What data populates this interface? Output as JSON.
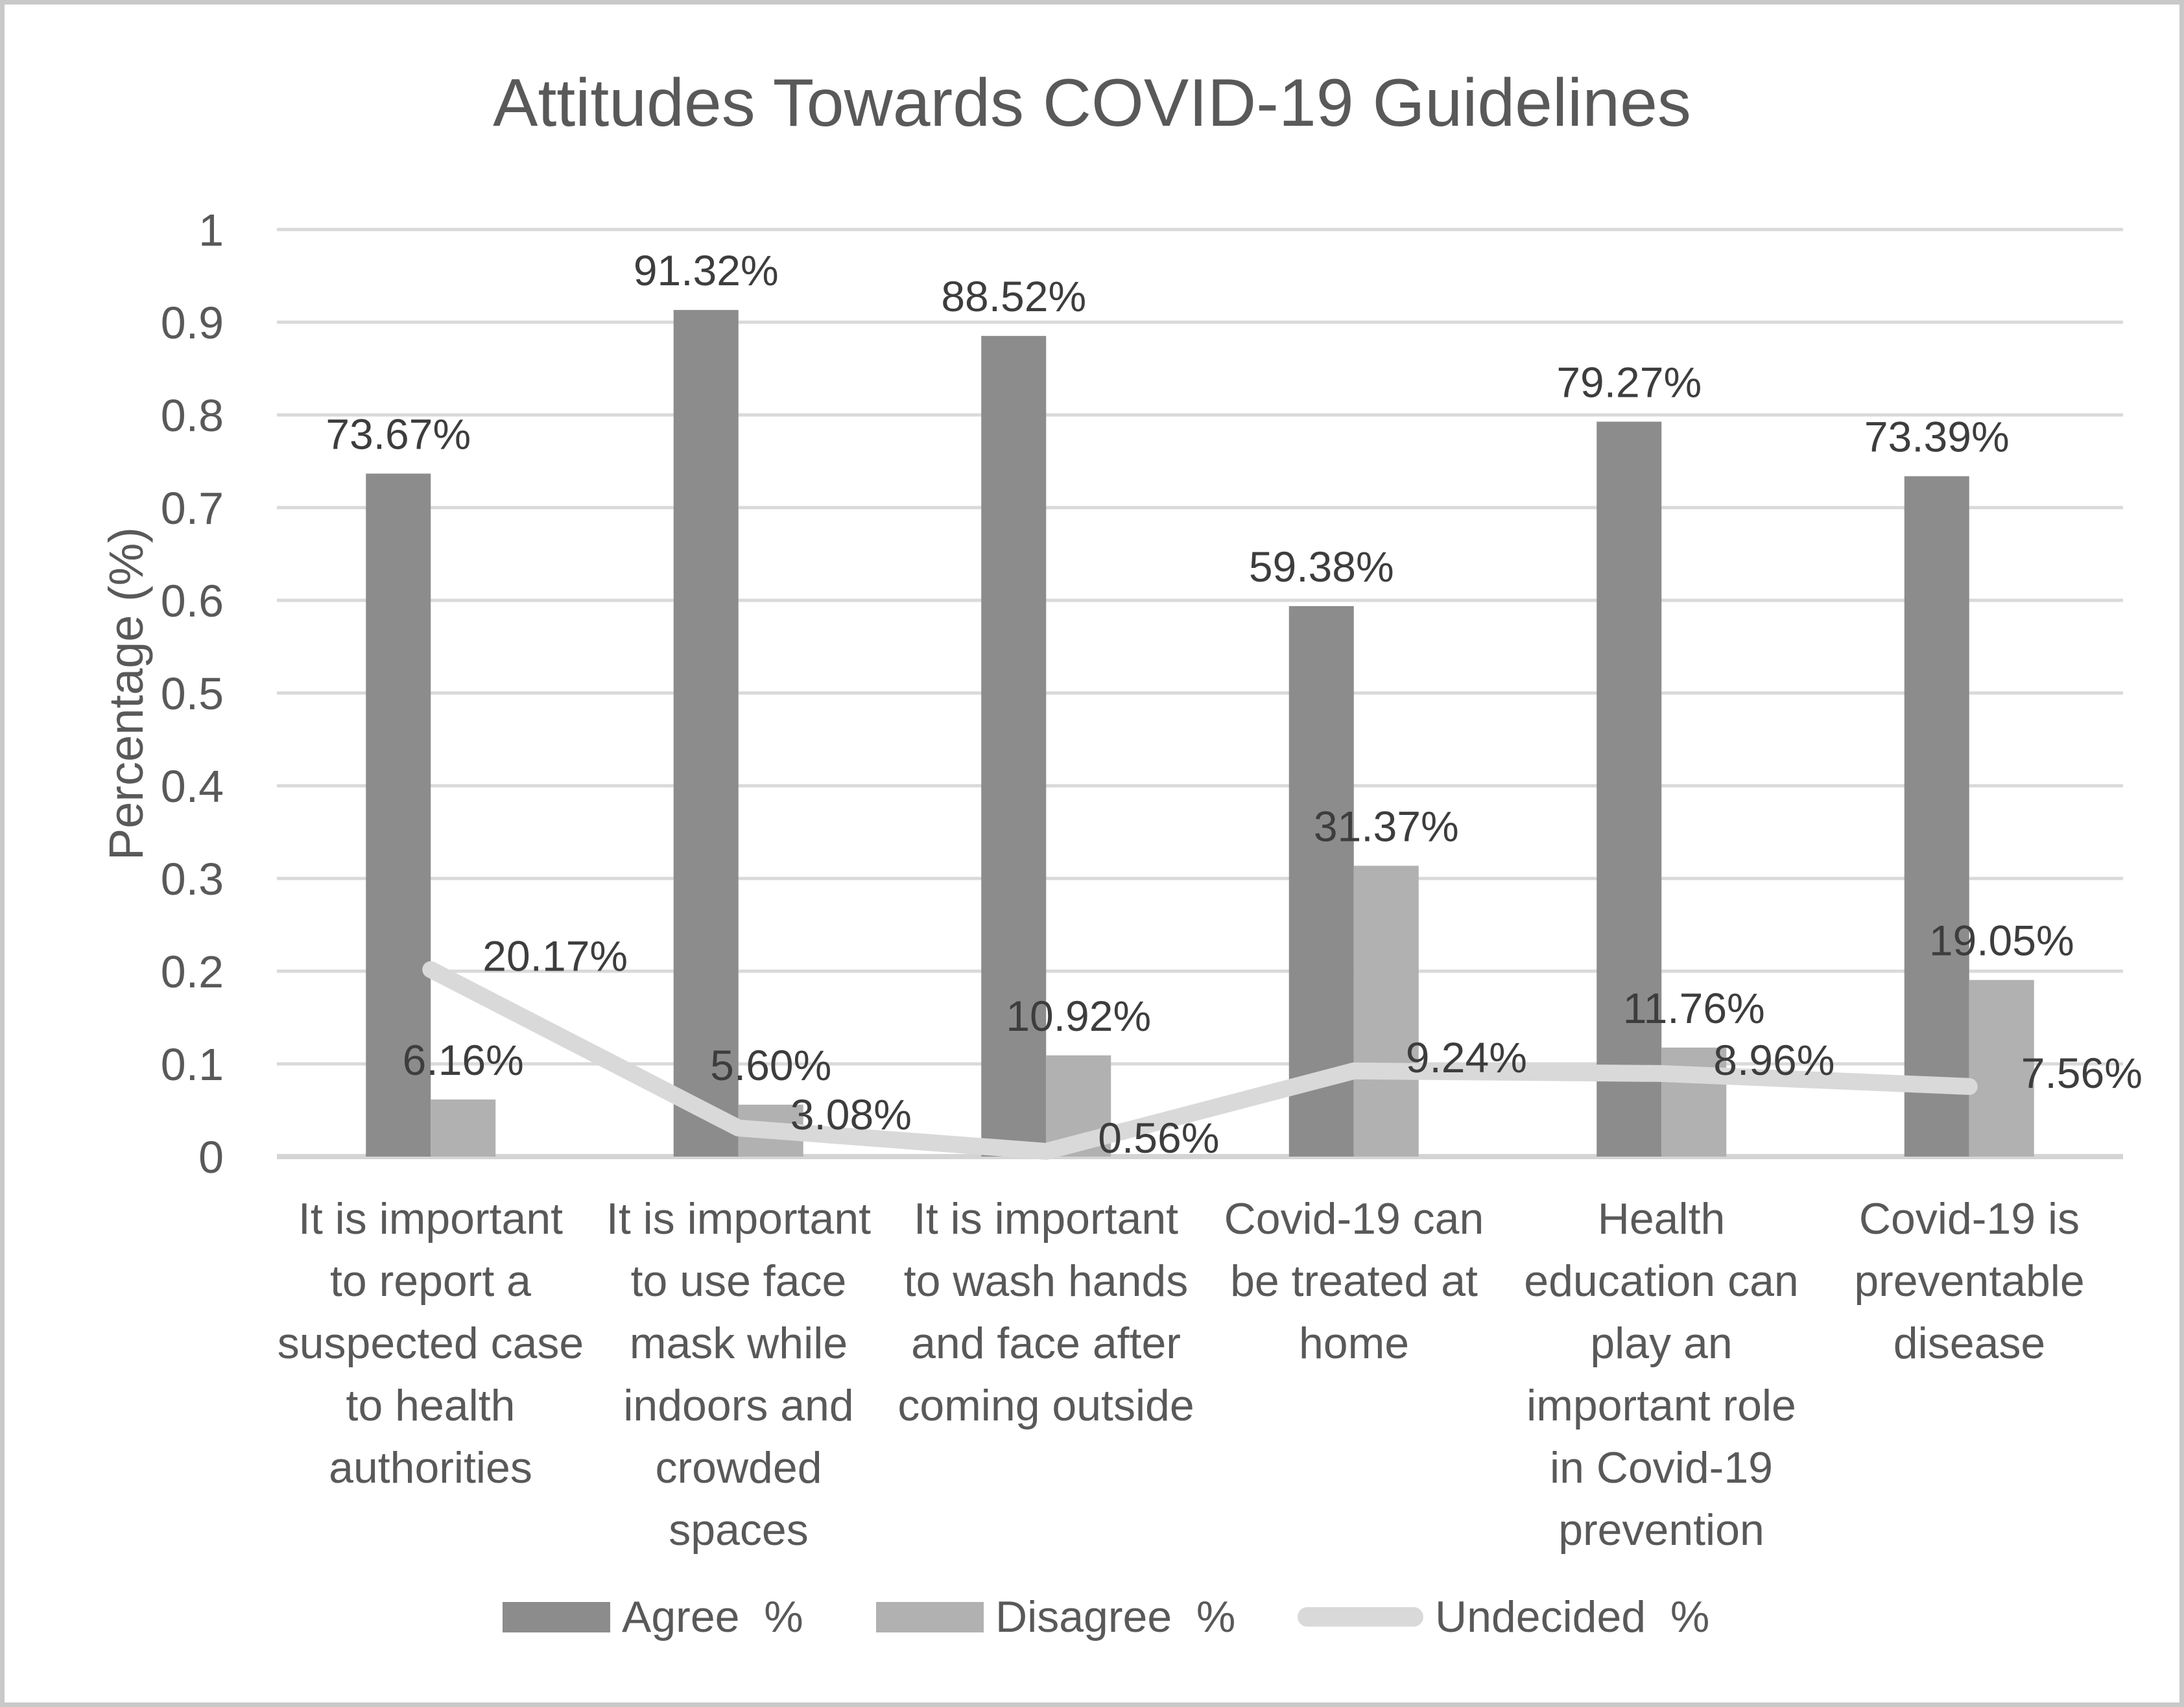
{
  "chart_data": {
    "type": "bar",
    "subtype": "grouped-bars-with-line-overlay",
    "title": "Attitudes Towards COVID-19 Guidelines",
    "xlabel": "",
    "ylabel": "Percentage (%)",
    "ylim": [
      0,
      1
    ],
    "yticks": [
      "1",
      "0.9",
      "0.8",
      "0.7",
      "0.6",
      "0.5",
      "0.4",
      "0.3",
      "0.2",
      "0.1",
      "0"
    ],
    "grid": true,
    "legend_position": "bottom",
    "categories": [
      "It is important\nto report a\nsuspected case\nto health\nauthorities",
      "It is important\nto use face\nmask while\nindoors and\ncrowded\nspaces",
      "It is important\nto wash hands\nand face after\ncoming outside",
      "Covid-19 can\nbe treated at\nhome",
      "Health\neducation can\nplay an\nimportant role\nin Covid-19\nprevention",
      "Covid-19 is\npreventable\ndisease"
    ],
    "series": [
      {
        "name": "Agree  %",
        "type": "bar",
        "color": "#8C8C8C",
        "values": [
          73.67,
          91.32,
          88.52,
          59.38,
          79.27,
          73.39
        ],
        "labels": [
          "73.67%",
          "91.32%",
          "88.52%",
          "59.38%",
          "79.27%",
          "73.39%"
        ]
      },
      {
        "name": "Disagree  %",
        "type": "bar",
        "color": "#B1B1B1",
        "values": [
          6.16,
          5.6,
          10.92,
          31.37,
          11.76,
          19.05
        ],
        "labels": [
          "6.16%",
          "5.60%",
          "10.92%",
          "31.37%",
          "11.76%",
          "19.05%"
        ]
      },
      {
        "name": "Undecided  %",
        "type": "line",
        "color": "#D9D9D9",
        "values": [
          20.17,
          3.08,
          0.56,
          9.24,
          8.96,
          7.56
        ],
        "labels": [
          "20.17%",
          "3.08%",
          "0.56%",
          "9.24%",
          "8.96%",
          "7.56%"
        ]
      }
    ],
    "colors": {
      "grid": "#D9D9D9",
      "axis": "#D4D4D4",
      "text": "#595959",
      "data_label": "#3D3D3D",
      "background": "#FFFFFF",
      "border": "#C9C9C9"
    }
  }
}
